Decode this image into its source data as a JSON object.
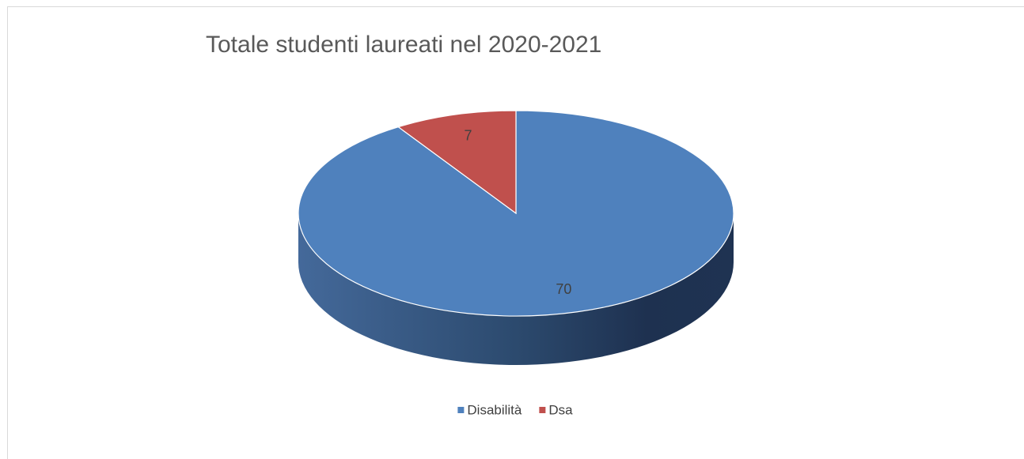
{
  "chart_data": {
    "type": "pie",
    "title": "Totale studenti laureati nel 2020-2021",
    "categories": [
      "Disabilità",
      "Dsa"
    ],
    "values": [
      70,
      7
    ],
    "colors": [
      "#4f81bd",
      "#c0504d"
    ],
    "legend": "bottom"
  }
}
